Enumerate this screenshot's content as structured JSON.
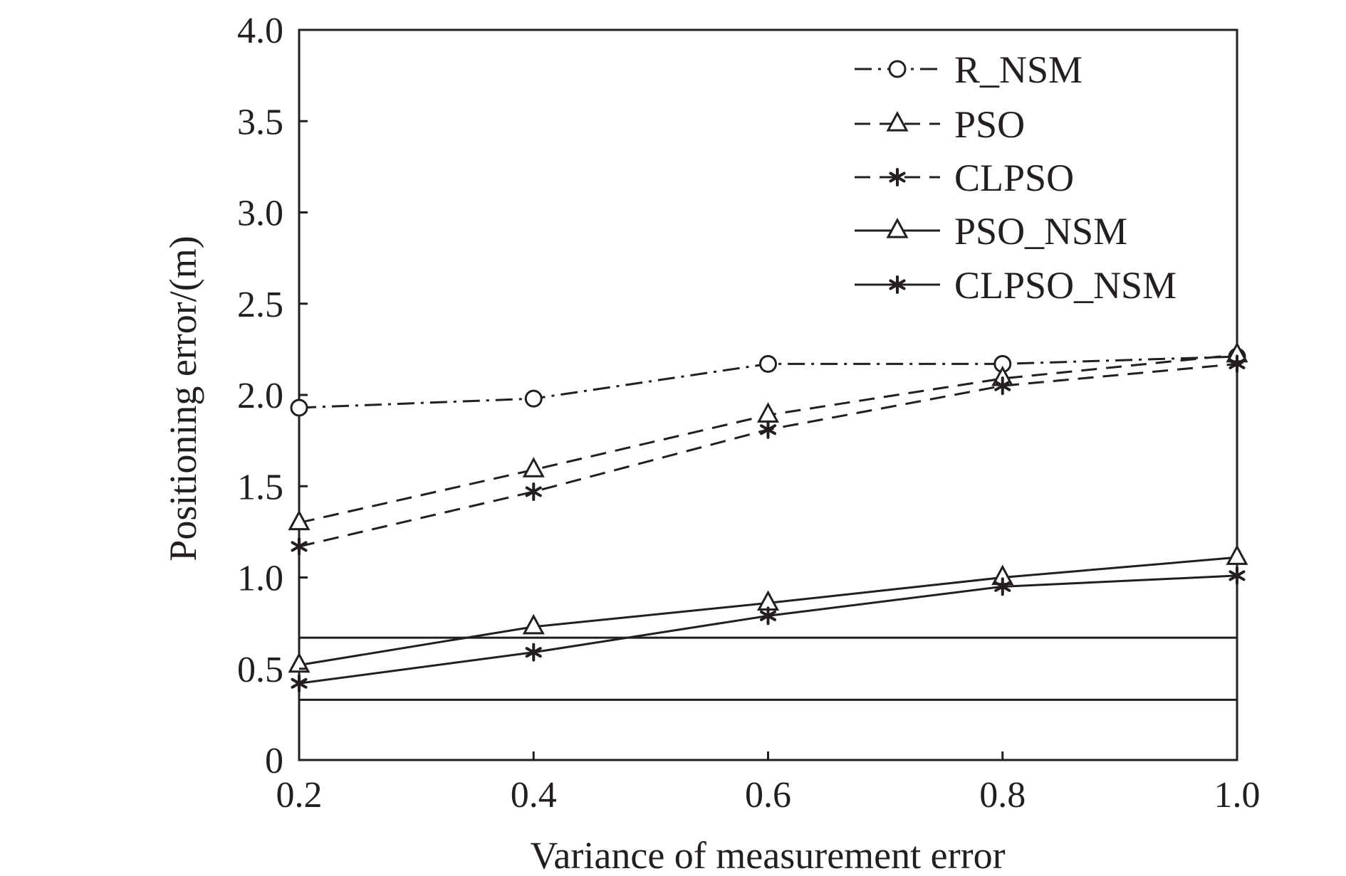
{
  "chart_data": {
    "type": "line",
    "title": "",
    "xlabel": "Variance of measurement error",
    "ylabel": "Positioning error/(m)",
    "xlim": [
      0.2,
      1.0
    ],
    "ylim": [
      0,
      4.0
    ],
    "x_ticks": [
      0.2,
      0.4,
      0.6,
      0.8,
      1.0
    ],
    "x_tick_labels": [
      "0.2",
      "0.4",
      "0.6",
      "0.8",
      "1.0"
    ],
    "y_ticks": [
      0,
      0.5,
      1.0,
      1.5,
      2.0,
      2.5,
      3.0,
      3.5,
      4.0
    ],
    "y_tick_labels": [
      "0",
      "0.5",
      "1.0",
      "1.5",
      "2.0",
      "2.5",
      "3.0",
      "3.5",
      "4.0"
    ],
    "grid": false,
    "legend_position": "top-right",
    "x": [
      0.2,
      0.4,
      0.6,
      0.8,
      1.0
    ],
    "series": [
      {
        "name": "R_NSM",
        "values": [
          1.93,
          1.98,
          2.17,
          2.17,
          2.21
        ],
        "line_style": "dashdot",
        "marker": "circle"
      },
      {
        "name": "PSO",
        "values": [
          1.3,
          1.59,
          1.89,
          2.09,
          2.22
        ],
        "line_style": "dashed",
        "marker": "triangle"
      },
      {
        "name": "CLPSO",
        "values": [
          1.17,
          1.47,
          1.81,
          2.05,
          2.17
        ],
        "line_style": "dashed",
        "marker": "asterisk"
      },
      {
        "name": "PSO_NSM",
        "values": [
          0.52,
          0.73,
          0.86,
          1.0,
          1.11
        ],
        "line_style": "solid",
        "marker": "triangle"
      },
      {
        "name": "CLPSO_NSM",
        "values": [
          0.42,
          0.59,
          0.79,
          0.95,
          1.01
        ],
        "line_style": "solid",
        "marker": "asterisk"
      }
    ],
    "reference_lines": [
      {
        "y": 0.67,
        "style": "solid"
      },
      {
        "y": 0.33,
        "style": "solid"
      }
    ],
    "colors": {
      "ink": "#231f20",
      "background": "#ffffff"
    }
  }
}
